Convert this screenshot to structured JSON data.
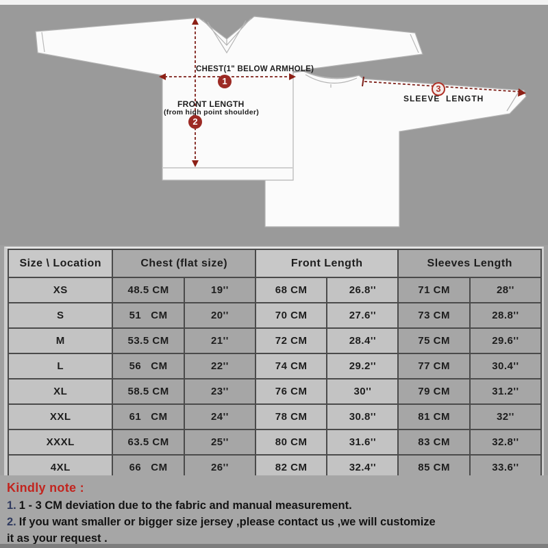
{
  "diagram": {
    "chest_label": "CHEST(1\" BELOW ARMHOLE)",
    "front_length_label_line1": "FRONT LENGTH",
    "front_length_label_line2": "(from high point shoulder)",
    "sleeve_label": "SLEEVE  LENGTH",
    "badge_numbers": {
      "chest": "1",
      "front": "2",
      "sleeve": "3"
    }
  },
  "size_table": {
    "corner_header": "Size \\ Location",
    "group_headers": [
      "Chest (flat size)",
      "Front Length",
      "Sleeves Length"
    ],
    "rows": [
      [
        "XS",
        "48.5 CM",
        "19''",
        "68 CM",
        "26.8''",
        "71 CM",
        "28''"
      ],
      [
        "S",
        "51   CM",
        "20''",
        "70 CM",
        "27.6''",
        "73 CM",
        "28.8''"
      ],
      [
        "M",
        "53.5 CM",
        "21''",
        "72 CM",
        "28.4''",
        "75 CM",
        "29.6''"
      ],
      [
        "L",
        "56   CM",
        "22''",
        "74 CM",
        "29.2''",
        "77 CM",
        "30.4''"
      ],
      [
        "XL",
        "58.5 CM",
        "23''",
        "76 CM",
        "30''",
        "79 CM",
        "31.2''"
      ],
      [
        "XXL",
        "61   CM",
        "24''",
        "78 CM",
        "30.8''",
        "81 CM",
        "32''"
      ],
      [
        "XXXL",
        "63.5 CM",
        "25''",
        "80 CM",
        "31.6''",
        "83 CM",
        "32.8''"
      ],
      [
        "4XL",
        "66   CM",
        "26''",
        "82 CM",
        "32.4''",
        "85 CM",
        "33.6''"
      ]
    ]
  },
  "notes": {
    "heading": "Kindly note :",
    "lines": [
      {
        "num": "1.",
        "text": "1 - 3 CM deviation due to the fabric and manual measurement."
      },
      {
        "num": "2.",
        "text": "If you want smaller or bigger size jersey ,please contact us ,we will customize"
      },
      {
        "num": "",
        "text": "it as your request ."
      }
    ]
  },
  "colors": {
    "background_gray": "#9a9a9a",
    "cell_light": "#c3c3c3",
    "cell_dark": "#a6a6a6",
    "table_border": "#4a4a4a",
    "measure_line": "#7d1f18",
    "badge_fill": "#9c2a24",
    "note_red": "#c2241e",
    "note_number_blue": "#2f3a5f",
    "jersey_white": "#fbfbfb"
  }
}
